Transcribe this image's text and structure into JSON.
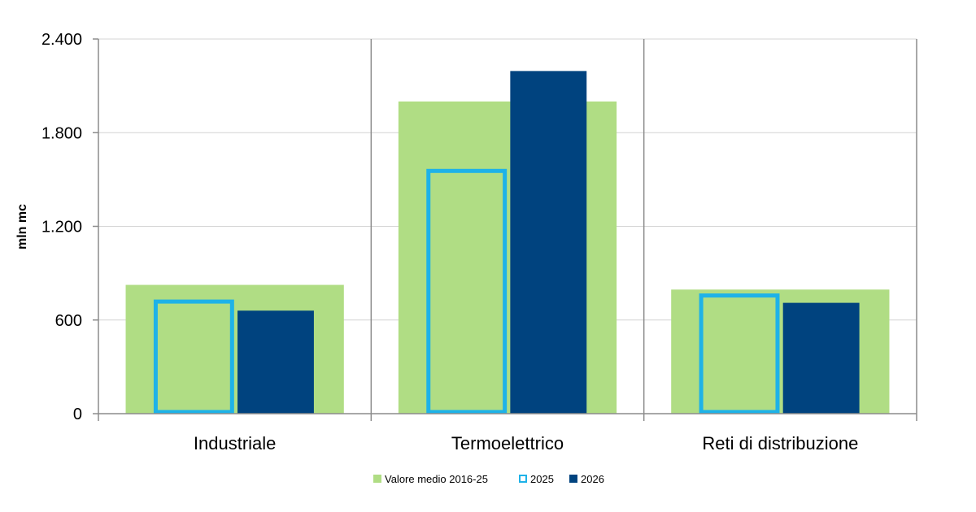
{
  "chart_data": {
    "type": "bar",
    "ylabel": "mln mc",
    "ylim": [
      0,
      2400
    ],
    "yticks": [
      0,
      600,
      1200,
      1800,
      2400
    ],
    "ytick_labels": [
      "0",
      "600",
      "1.200",
      "1.800",
      "2.400"
    ],
    "grid": true,
    "legend_position": "bottom",
    "categories": [
      "Industriale",
      "Termoelettrico",
      "Reti di distribuzione"
    ],
    "series": [
      {
        "name": "Valore medio 2016-25",
        "values": [
          825,
          2000,
          795
        ],
        "color": "#b0dd84",
        "style": "wide-fill"
      },
      {
        "name": "2025",
        "values": [
          718,
          1555,
          757
        ],
        "color": "#1eb2e8",
        "style": "outline"
      },
      {
        "name": "2026",
        "values": [
          660,
          2195,
          710
        ],
        "color": "#00437f",
        "style": "fill"
      }
    ]
  }
}
